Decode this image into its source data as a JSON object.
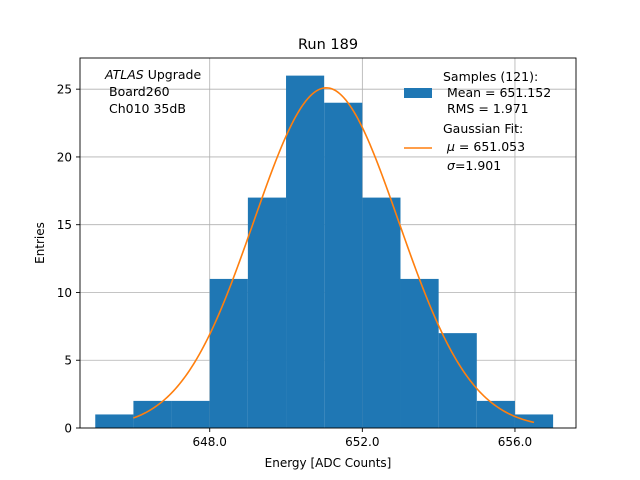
{
  "chart_data": {
    "type": "bar",
    "title": "Run 189",
    "xlabel": "Energy [ADC Counts]",
    "ylabel": "Entries",
    "xlim": [
      644.6,
      657.6
    ],
    "ylim": [
      0,
      27.3
    ],
    "xticks": [
      648.0,
      652.0,
      656.0
    ],
    "xtick_labels": [
      "648.0",
      "652.0",
      "656.0"
    ],
    "yticks": [
      0,
      5,
      10,
      15,
      20,
      25
    ],
    "ytick_labels": [
      "0",
      "5",
      "10",
      "15",
      "20",
      "25"
    ],
    "grid": true,
    "annotation": {
      "italic_part": "ATLAS",
      "upright_part": " Upgrade",
      "line2": "Board260",
      "line3": "Ch010 35dB"
    },
    "histogram": {
      "name": "Samples (121):",
      "bin_edges": [
        645,
        646,
        647,
        648,
        649,
        650,
        651,
        652,
        653,
        654,
        655,
        656,
        657
      ],
      "counts": [
        1,
        2,
        2,
        11,
        17,
        26,
        24,
        17,
        11,
        7,
        2,
        1
      ],
      "color": "#1f77b4"
    },
    "fit": {
      "name": "Gaussian Fit:",
      "mu": 651.053,
      "sigma": 1.901,
      "amplitude": 25.1,
      "x_range": [
        646.0,
        656.5
      ],
      "color": "#ff7f0e"
    },
    "legend": {
      "placement": "top-right",
      "hist_line2": "Mean = 651.152",
      "hist_line3": "RMS = 1.971",
      "fit_line2_prefix": "μ",
      "fit_line2_rest": " = 651.053",
      "fit_line3_prefix": "σ",
      "fit_line3_rest": "=1.901"
    }
  }
}
